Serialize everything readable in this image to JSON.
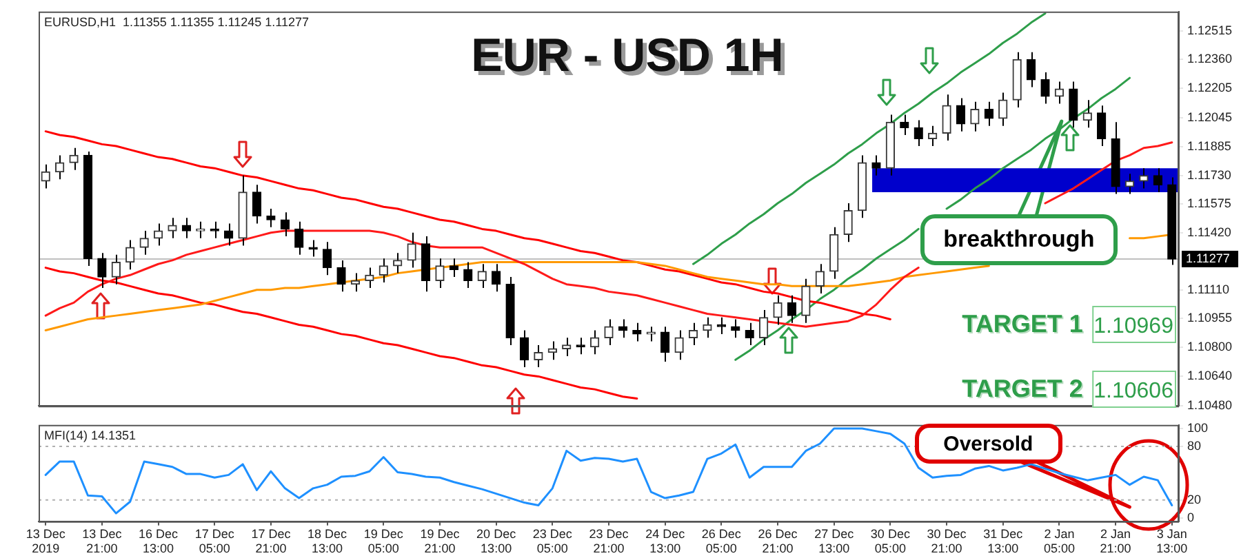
{
  "chart_data": [
    {
      "type": "candlestick",
      "title": "EUR - USD 1H",
      "subtitle": "EURUSD,H1  1.11355 1.11355 1.11245 1.11277",
      "ylim": [
        1.1048,
        1.1262
      ],
      "categories": [
        null,
        null,
        null,
        null,
        null,
        null,
        null,
        null,
        null,
        null,
        null,
        null,
        null,
        null,
        null,
        null,
        null,
        null,
        null,
        null,
        null,
        null,
        null,
        null,
        null,
        null,
        null,
        null,
        null,
        null,
        null,
        null,
        null,
        null,
        null,
        null,
        null,
        null,
        null,
        null,
        null,
        null,
        null,
        null,
        null,
        null,
        null,
        null,
        null,
        null,
        null,
        null,
        null,
        null,
        null,
        null,
        null,
        null,
        null,
        null,
        null,
        null,
        null,
        null,
        null,
        null,
        null,
        null,
        null,
        null,
        null,
        null,
        null,
        null,
        null,
        null,
        null,
        null,
        null,
        null,
        null
      ],
      "yticks": [
        {
          "value": 1.1048,
          "label": "1.10480"
        },
        {
          "value": 1.1064,
          "label": "1.10640"
        },
        {
          "value": 1.108,
          "label": "1.10800"
        },
        1.10955,
        {
          "value": 1.1111,
          "label": "1.11110"
        },
        {
          "value": 1.1142,
          "label": "1.11420"
        },
        1.11575,
        {
          "value": 1.1173,
          "label": "1.11730"
        },
        1.11885,
        1.12045,
        1.12205,
        {
          "value": 1.1236,
          "label": "1.12360"
        },
        1.12515
      ],
      "tick_labels": "y",
      "series": [
        {
          "type": "line",
          "color": "#ff1a1a",
          "values": [
            1.1097,
            1.1101,
            1.1104,
            1.111,
            1.1114,
            1.1117,
            1.1119,
            1.1122,
            1.1125,
            1.1127,
            1.113,
            1.1132,
            1.1134,
            1.1136,
            1.1138,
            1.114,
            1.1142,
            1.1143,
            1.1143,
            1.1143,
            1.1143,
            1.1143,
            1.1143,
            1.1143,
            1.1142,
            1.114,
            1.1137,
            1.1135,
            1.1134,
            1.1134,
            1.1134,
            1.1134,
            1.1131,
            1.1128,
            1.1125,
            1.1121,
            1.1117,
            1.1114,
            1.1113,
            1.1112,
            1.111,
            1.1109,
            1.1108,
            1.1106,
            1.1104,
            1.1102,
            1.11,
            1.1098,
            1.1097,
            1.1096,
            1.1095,
            1.1094,
            1.1093,
            1.1092,
            1.1091,
            1.1092,
            1.1093,
            1.1094,
            1.1097,
            1.1103,
            1.1111,
            1.1118,
            1.1123,
            null,
            null,
            null,
            null,
            null,
            null,
            null,
            null,
            1.1158,
            1.1162,
            1.1166,
            1.1171,
            1.1176,
            1.1181,
            1.1184,
            1.1188,
            1.1189,
            1.1191
          ]
        },
        {
          "type": "line",
          "color": "#ff9900",
          "values": [
            1.1089,
            1.1091,
            1.1093,
            1.1095,
            1.1096,
            1.1097,
            1.1098,
            1.1099,
            1.11,
            1.1101,
            1.1102,
            1.1103,
            1.1105,
            1.1107,
            1.1109,
            1.1111,
            1.1111,
            1.1112,
            1.1112,
            1.1113,
            1.1114,
            1.1115,
            1.1116,
            1.1117,
            1.1118,
            1.112,
            1.1121,
            1.1122,
            1.1123,
            1.1124,
            1.1125,
            1.1126,
            1.1126,
            1.1126,
            1.1126,
            1.1126,
            1.1126,
            1.1126,
            1.1126,
            1.1126,
            1.1126,
            1.1126,
            1.1126,
            1.1125,
            1.1124,
            1.1122,
            1.112,
            1.1118,
            1.1117,
            1.1116,
            1.1115,
            1.1114,
            1.1114,
            1.1113,
            1.1113,
            1.1113,
            1.1113,
            1.1113,
            1.1114,
            1.1115,
            1.1116,
            1.1118,
            1.1119,
            1.112,
            1.1121,
            1.1122,
            1.1123,
            1.1124,
            null,
            null,
            null,
            null,
            null,
            null,
            null,
            null,
            null,
            1.1139,
            1.1139,
            1.114,
            1.1141
          ]
        },
        {
          "type": "line",
          "color": "#ff0000",
          "values": [
            1.1197,
            1.1195,
            1.1194,
            1.1192,
            1.119,
            1.1189,
            1.1187,
            1.1185,
            1.1183,
            1.1182,
            1.118,
            1.1178,
            1.1177,
            1.1175,
            1.1173,
            1.1172,
            1.117,
            1.1168,
            1.1166,
            1.1165,
            1.1163,
            1.1161,
            1.116,
            1.1158,
            1.1156,
            1.1155,
            1.1153,
            1.1151,
            1.1149,
            1.1148,
            1.1146,
            1.1144,
            1.1143,
            1.1141,
            1.1139,
            1.1138,
            1.1136,
            1.1134,
            1.1132,
            1.1131,
            1.1129,
            1.1127,
            1.1126,
            1.1124,
            1.1122,
            1.1121,
            1.1119,
            1.1117,
            1.1115,
            1.1114,
            1.1112,
            1.111,
            1.1109,
            1.1107,
            1.1105,
            1.1104,
            1.1102,
            1.11,
            1.1098,
            1.1097,
            1.1095,
            null,
            null,
            null,
            null,
            null,
            null,
            null,
            null,
            null,
            null,
            null,
            null,
            null,
            null,
            null,
            null,
            null,
            null,
            null,
            null
          ]
        },
        {
          "type": "line",
          "color": "#ff0000",
          "values": [
            1.1123,
            1.1121,
            1.112,
            1.1118,
            1.1116,
            1.1115,
            1.1113,
            1.1111,
            1.1109,
            1.1108,
            1.1106,
            1.1104,
            1.1103,
            1.1101,
            1.1099,
            1.1098,
            1.1096,
            1.1094,
            1.1092,
            1.1091,
            1.1089,
            1.1087,
            1.1086,
            1.1084,
            1.1082,
            1.1081,
            1.1079,
            1.1077,
            1.1075,
            1.1074,
            1.1072,
            1.107,
            1.1069,
            1.1067,
            1.1065,
            1.1064,
            1.1062,
            1.106,
            1.1058,
            1.1057,
            1.1055,
            1.1053,
            1.1052,
            null,
            null,
            null,
            null,
            null,
            null,
            null,
            null,
            null,
            null,
            null,
            null,
            null,
            null,
            null,
            null,
            null,
            null,
            null,
            null,
            null,
            null,
            null,
            null,
            null,
            null,
            null,
            null,
            null,
            null,
            null,
            null,
            null,
            null,
            null,
            null,
            null,
            null
          ]
        },
        {
          "type": "line",
          "color": "#2e9e4a",
          "values": [
            null,
            null,
            null,
            null,
            null,
            null,
            null,
            null,
            null,
            null,
            null,
            null,
            null,
            null,
            null,
            null,
            null,
            null,
            null,
            null,
            null,
            null,
            null,
            null,
            null,
            null,
            null,
            null,
            null,
            null,
            null,
            null,
            null,
            null,
            null,
            null,
            null,
            null,
            null,
            null,
            null,
            null,
            null,
            null,
            null,
            null,
            1.1125,
            1.113,
            1.1136,
            1.1141,
            1.1147,
            1.1152,
            1.1158,
            1.1163,
            1.1169,
            1.1174,
            1.1179,
            1.1185,
            1.119,
            1.1196,
            1.1201,
            1.1207,
            1.1212,
            1.1218,
            1.1223,
            1.1229,
            1.1234,
            1.1239,
            1.1245,
            1.125,
            1.1256,
            1.1261,
            null,
            null,
            null,
            null,
            null,
            null,
            null,
            null,
            null
          ]
        },
        {
          "type": "line",
          "color": "#2e9e4a",
          "values": [
            null,
            null,
            null,
            null,
            null,
            null,
            null,
            null,
            null,
            null,
            null,
            null,
            null,
            null,
            null,
            null,
            null,
            null,
            null,
            null,
            null,
            null,
            null,
            null,
            null,
            null,
            null,
            null,
            null,
            null,
            null,
            null,
            null,
            null,
            null,
            null,
            null,
            null,
            null,
            null,
            null,
            null,
            null,
            null,
            null,
            null,
            null,
            null,
            null,
            1.1073,
            1.1078,
            1.1084,
            1.1089,
            1.1095,
            1.11,
            1.1106,
            1.1111,
            1.1117,
            1.1122,
            1.1128,
            1.1133,
            1.1138,
            1.1144,
            null,
            1.1155,
            1.116,
            1.1166,
            1.1171,
            1.1177,
            1.1182,
            1.1187,
            1.1193,
            1.1198,
            1.1204,
            1.1209,
            1.1215,
            1.122,
            1.1226,
            null,
            null,
            null
          ]
        },
        {
          "ohlc": [
            [
              1.117,
              1.1179,
              1.1166,
              1.1175
            ],
            [
              1.1175,
              1.1184,
              1.1171,
              1.118
            ],
            [
              1.118,
              1.1188,
              1.1176,
              1.1184
            ],
            [
              1.1184,
              1.1186,
              1.1124,
              1.1128
            ],
            [
              1.1128,
              1.1131,
              1.1112,
              1.1118
            ],
            [
              1.1118,
              1.113,
              1.1114,
              1.1126
            ],
            [
              1.1126,
              1.1138,
              1.1122,
              1.1134
            ],
            [
              1.1134,
              1.1143,
              1.113,
              1.1139
            ],
            [
              1.1139,
              1.1147,
              1.1135,
              1.1143
            ],
            [
              1.1143,
              1.115,
              1.1139,
              1.1146
            ],
            [
              1.1146,
              1.115,
              1.1139,
              1.1143
            ],
            [
              1.1143,
              1.1148,
              1.1139,
              1.1144
            ],
            [
              1.1144,
              1.1148,
              1.1139,
              1.1143
            ],
            [
              1.1143,
              1.1147,
              1.1135,
              1.1139
            ],
            [
              1.1139,
              1.1173,
              1.1135,
              1.1164
            ],
            [
              1.1164,
              1.1168,
              1.1147,
              1.1151
            ],
            [
              1.1151,
              1.1155,
              1.1145,
              1.1149
            ],
            [
              1.1149,
              1.1153,
              1.114,
              1.1144
            ],
            [
              1.1144,
              1.1148,
              1.113,
              1.1134
            ],
            [
              1.1134,
              1.1138,
              1.1129,
              1.1133
            ],
            [
              1.1133,
              1.1137,
              1.1119,
              1.1123
            ],
            [
              1.1123,
              1.1127,
              1.111,
              1.1114
            ],
            [
              1.1114,
              1.112,
              1.111,
              1.1116
            ],
            [
              1.1116,
              1.1123,
              1.1112,
              1.1119
            ],
            [
              1.1119,
              1.1128,
              1.1115,
              1.1124
            ],
            [
              1.1124,
              1.1131,
              1.112,
              1.1127
            ],
            [
              1.1127,
              1.1142,
              1.1123,
              1.1136
            ],
            [
              1.1136,
              1.114,
              1.111,
              1.1116
            ],
            [
              1.1116,
              1.1128,
              1.1112,
              1.1124
            ],
            [
              1.1124,
              1.1128,
              1.1118,
              1.1122
            ],
            [
              1.1122,
              1.1126,
              1.1112,
              1.1116
            ],
            [
              1.1116,
              1.1125,
              1.1112,
              1.1121
            ],
            [
              1.1121,
              1.1125,
              1.111,
              1.1114
            ],
            [
              1.1114,
              1.1118,
              1.1081,
              1.1085
            ],
            [
              1.1085,
              1.1089,
              1.1069,
              1.1073
            ],
            [
              1.1073,
              1.1081,
              1.1069,
              1.1077
            ],
            [
              1.1077,
              1.1083,
              1.1073,
              1.1079
            ],
            [
              1.1079,
              1.1085,
              1.1075,
              1.1081
            ],
            [
              1.1081,
              1.1085,
              1.1076,
              1.108
            ],
            [
              1.108,
              1.1089,
              1.1076,
              1.1085
            ],
            [
              1.1085,
              1.1095,
              1.1081,
              1.1091
            ],
            [
              1.1091,
              1.1095,
              1.1085,
              1.1089
            ],
            [
              1.1089,
              1.1093,
              1.1083,
              1.1087
            ],
            [
              1.1087,
              1.1091,
              1.1083,
              1.1088
            ],
            [
              1.1088,
              1.1091,
              1.1072,
              1.1077
            ],
            [
              1.1077,
              1.1089,
              1.1073,
              1.1085
            ],
            [
              1.1085,
              1.1093,
              1.1081,
              1.1089
            ],
            [
              1.1089,
              1.1096,
              1.1085,
              1.1092
            ],
            [
              1.1092,
              1.1096,
              1.1087,
              1.1091
            ],
            [
              1.1091,
              1.1095,
              1.1085,
              1.1089
            ],
            [
              1.1089,
              1.1093,
              1.1081,
              1.1085
            ],
            [
              1.1085,
              1.11,
              1.1081,
              1.1096
            ],
            [
              1.1096,
              1.1108,
              1.1092,
              1.1104
            ],
            [
              1.1104,
              1.1108,
              1.1093,
              1.1097
            ],
            [
              1.1097,
              1.1117,
              1.1093,
              1.1113
            ],
            [
              1.1113,
              1.1125,
              1.1109,
              1.1121
            ],
            [
              1.1121,
              1.1145,
              1.1117,
              1.1141
            ],
            [
              1.1141,
              1.1158,
              1.1137,
              1.1154
            ],
            [
              1.1154,
              1.1184,
              1.115,
              1.118
            ],
            [
              1.118,
              1.1184,
              1.1173,
              1.1177
            ],
            [
              1.1177,
              1.1206,
              1.1173,
              1.1202
            ],
            [
              1.1202,
              1.1206,
              1.1195,
              1.1199
            ],
            [
              1.1199,
              1.1203,
              1.1189,
              1.1193
            ],
            [
              1.1193,
              1.12,
              1.1189,
              1.1196
            ],
            [
              1.1196,
              1.1217,
              1.1192,
              1.1211
            ],
            [
              1.1211,
              1.1215,
              1.1197,
              1.1201
            ],
            [
              1.1201,
              1.1213,
              1.1197,
              1.1209
            ],
            [
              1.1209,
              1.1213,
              1.12,
              1.1204
            ],
            [
              1.1204,
              1.1218,
              1.12,
              1.1214
            ],
            [
              1.1214,
              1.124,
              1.121,
              1.1236
            ],
            [
              1.1236,
              1.124,
              1.1221,
              1.1225
            ],
            [
              1.1225,
              1.1229,
              1.1212,
              1.1216
            ],
            [
              1.1216,
              1.1224,
              1.1212,
              1.122
            ],
            [
              1.122,
              1.1224,
              1.1199,
              1.1203
            ],
            [
              1.1203,
              1.1214,
              1.1199,
              1.1207
            ],
            [
              1.1207,
              1.1211,
              1.1189,
              1.1193
            ],
            [
              1.1193,
              1.1202,
              1.1163,
              1.1167
            ],
            [
              1.1167,
              1.1174,
              1.1163,
              1.117
            ],
            [
              1.117,
              1.1177,
              1.1166,
              1.1173
            ],
            [
              1.1173,
              1.1177,
              1.1164,
              1.1168
            ],
            [
              1.1168,
              1.1172,
              1.11245,
              1.11277
            ]
          ]
        }
      ],
      "bands": [
        {
          "axis": "y",
          "from": 1.1164,
          "to": 1.1177,
          "color": "#0000cc"
        }
      ],
      "ref_lines": [
        {
          "axis": "y",
          "value": 1.11277,
          "label": "1.11277",
          "color": "#c0c0c0"
        }
      ],
      "annotations": [
        "breakthrough",
        "TARGET 1",
        "1.10969",
        "TARGET 2",
        "1.10606"
      ],
      "marker": "none",
      "line_style": "solid"
    },
    {
      "type": "line",
      "title": "MFI(14) 14.1351",
      "ylim": [
        -4,
        104
      ],
      "categories": [
        "13 Dec 2019",
        null,
        null,
        null,
        "13 Dec 21:00",
        null,
        null,
        null,
        "16 Dec 13:00",
        null,
        null,
        null,
        "17 Dec 05:00",
        null,
        null,
        null,
        "17 Dec 21:00",
        null,
        null,
        null,
        "18 Dec 13:00",
        null,
        null,
        null,
        "19 Dec 05:00",
        null,
        null,
        null,
        "19 Dec 21:00",
        null,
        null,
        null,
        "20 Dec 13:00",
        null,
        null,
        null,
        "23 Dec 05:00",
        null,
        null,
        null,
        "23 Dec 21:00",
        null,
        null,
        null,
        "24 Dec 13:00",
        null,
        null,
        null,
        "26 Dec 05:00",
        null,
        null,
        null,
        "26 Dec 21:00",
        null,
        null,
        null,
        "27 Dec 13:00",
        null,
        null,
        null,
        "30 Dec 05:00",
        null,
        null,
        null,
        "30 Dec 21:00",
        null,
        null,
        null,
        "31 Dec 13:00",
        null,
        null,
        null,
        "2 Jan 05:00",
        null,
        null,
        null,
        "2 Jan 21:00",
        null,
        null,
        null,
        "3 Jan 13:00"
      ],
      "yticks": [
        0,
        20,
        80,
        100
      ],
      "series": [
        {
          "color": "#1e90ff",
          "values": [
            48,
            63,
            63,
            25,
            24,
            5,
            18,
            63,
            60,
            57,
            49,
            49,
            45,
            48,
            60,
            31,
            52,
            33,
            22,
            33,
            37,
            46,
            47,
            52,
            68,
            51,
            49,
            46,
            45,
            40,
            36,
            32,
            27,
            22,
            17,
            14,
            33,
            75,
            64,
            67,
            66,
            63,
            66,
            29,
            22,
            25,
            29,
            66,
            72,
            82,
            45,
            57,
            57,
            57,
            75,
            83,
            100,
            100,
            100,
            97,
            94,
            83,
            56,
            45,
            47,
            48,
            55,
            58,
            53,
            56,
            60,
            55,
            50,
            46,
            42,
            45,
            48,
            37,
            46,
            42,
            14
          ]
        }
      ],
      "ref_lines": [
        {
          "axis": "y",
          "value": 20,
          "color": "#b0b0b0",
          "line_style": "dotted"
        },
        {
          "axis": "y",
          "value": 80,
          "color": "#b0b0b0",
          "line_style": "dotted"
        }
      ],
      "annotations": [
        "Oversold"
      ],
      "marker": "none",
      "line_style": "solid"
    }
  ]
}
